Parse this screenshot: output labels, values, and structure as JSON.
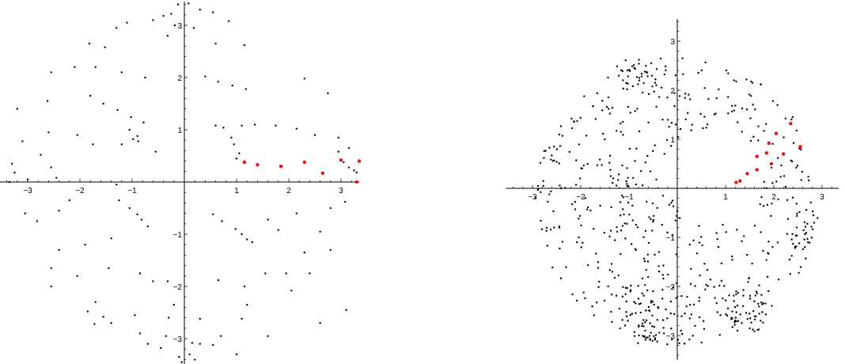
{
  "chart_data": [
    {
      "type": "scatter",
      "title": "",
      "xlabel": "",
      "ylabel": "",
      "xlim": [
        -3.55,
        3.35
      ],
      "ylim": [
        -3.5,
        3.45
      ],
      "grid": false,
      "x_ticks": [
        "-3",
        "-2",
        "-1",
        "1",
        "2",
        "3"
      ],
      "y_ticks": [
        "-3",
        "-2",
        "-1",
        "1",
        "2",
        "3"
      ],
      "series": [
        {
          "color": "#000000",
          "radius": 1.2,
          "points": [
            [
              0.08,
              3.42
            ],
            [
              0.3,
              3.3
            ],
            [
              0.55,
              3.25
            ],
            [
              0.85,
              3.08
            ],
            [
              -0.12,
              3.4
            ],
            [
              -0.25,
              3.22
            ],
            [
              -0.4,
              3.18
            ],
            [
              -0.6,
              3.1
            ],
            [
              -1.1,
              3.05
            ],
            [
              -1.3,
              2.95
            ],
            [
              -0.18,
              3.0
            ],
            [
              0.18,
              2.95
            ],
            [
              0.6,
              2.65
            ],
            [
              1.15,
              2.62
            ],
            [
              -0.32,
              2.8
            ],
            [
              -1.82,
              2.65
            ],
            [
              -1.52,
              2.58
            ],
            [
              -2.1,
              2.2
            ],
            [
              -2.55,
              2.1
            ],
            [
              -1.7,
              2.2
            ],
            [
              -1.2,
              2.1
            ],
            [
              -0.75,
              2.0
            ],
            [
              0.4,
              2.02
            ],
            [
              0.65,
              1.92
            ],
            [
              0.92,
              1.85
            ],
            [
              1.18,
              1.78
            ],
            [
              2.3,
              1.98
            ],
            [
              2.75,
              1.7
            ],
            [
              -2.62,
              1.55
            ],
            [
              -3.2,
              1.4
            ],
            [
              -1.8,
              1.65
            ],
            [
              -1.55,
              1.5
            ],
            [
              -1.28,
              1.38
            ],
            [
              -1.02,
              1.24
            ],
            [
              -0.78,
              1.14
            ],
            [
              0.75,
              1.04
            ],
            [
              0.6,
              1.08
            ],
            [
              1.1,
              1.08
            ],
            [
              1.35,
              1.1
            ],
            [
              1.75,
              1.08
            ],
            [
              2.15,
              1.02
            ],
            [
              2.5,
              0.9
            ],
            [
              2.95,
              0.85
            ],
            [
              3.15,
              0.65
            ],
            [
              -3.1,
              0.78
            ],
            [
              -2.6,
              0.95
            ],
            [
              -2.05,
              0.9
            ],
            [
              -1.75,
              0.72
            ],
            [
              -1.05,
              1.0
            ],
            [
              -0.9,
              0.88
            ],
            [
              -0.98,
              0.82
            ],
            [
              -0.88,
              0.78
            ],
            [
              -1.2,
              0.72
            ],
            [
              -2.75,
              0.52
            ],
            [
              -0.55,
              0.58
            ],
            [
              0.9,
              0.85
            ],
            [
              0.95,
              0.72
            ],
            [
              1.05,
              0.55
            ],
            [
              1.0,
              0.45
            ],
            [
              2.95,
              0.58
            ],
            [
              3.05,
              0.38
            ],
            [
              3.15,
              0.28
            ],
            [
              3.25,
              0.22
            ],
            [
              3.3,
              0.18
            ],
            [
              -3.3,
              0.35
            ],
            [
              -3.25,
              0.18
            ],
            [
              -2.55,
              0.28
            ],
            [
              -3.0,
              0.05
            ],
            [
              -3.35,
              0.0
            ],
            [
              -2.45,
              0.08
            ],
            [
              -1.3,
              -0.05
            ],
            [
              -1.25,
              -0.35
            ],
            [
              -1.05,
              -0.5
            ],
            [
              -0.9,
              -0.62
            ],
            [
              -0.82,
              -0.72
            ],
            [
              -0.7,
              -0.85
            ],
            [
              -2.2,
              -0.35
            ],
            [
              -2.4,
              -0.55
            ],
            [
              -2.82,
              -0.75
            ],
            [
              -3.05,
              -0.6
            ],
            [
              0.55,
              -0.62
            ],
            [
              0.72,
              -0.75
            ],
            [
              0.98,
              -0.9
            ],
            [
              1.1,
              -1.0
            ],
            [
              1.2,
              -1.1
            ],
            [
              1.3,
              -1.15
            ],
            [
              1.6,
              -0.72
            ],
            [
              1.8,
              -0.92
            ],
            [
              2.15,
              -0.6
            ],
            [
              2.8,
              -0.5
            ],
            [
              3.08,
              -0.38
            ],
            [
              2.6,
              -0.95
            ],
            [
              2.3,
              -1.35
            ],
            [
              2.8,
              -1.3
            ],
            [
              -1.4,
              -1.08
            ],
            [
              -1.9,
              -1.2
            ],
            [
              -2.4,
              -1.3
            ],
            [
              -1.45,
              -1.65
            ],
            [
              -2.05,
              -1.8
            ],
            [
              -2.55,
              -1.65
            ],
            [
              -2.55,
              -2.0
            ],
            [
              -0.85,
              -1.75
            ],
            [
              -0.6,
              -1.9
            ],
            [
              -0.32,
              -1.9
            ],
            [
              0.65,
              -1.88
            ],
            [
              1.15,
              -2.0
            ],
            [
              1.55,
              -1.75
            ],
            [
              1.95,
              -1.75
            ],
            [
              2.4,
              -1.75
            ],
            [
              2.05,
              -2.08
            ],
            [
              1.2,
              -2.35
            ],
            [
              1.1,
              -2.62
            ],
            [
              -1.7,
              -2.3
            ],
            [
              -1.85,
              -2.48
            ],
            [
              -1.55,
              -2.58
            ],
            [
              -1.72,
              -2.72
            ],
            [
              -1.4,
              -2.7
            ],
            [
              -0.95,
              -2.55
            ],
            [
              -0.85,
              -2.9
            ],
            [
              -0.2,
              -2.35
            ],
            [
              -0.3,
              -2.6
            ],
            [
              -0.35,
              -2.95
            ],
            [
              0.3,
              -2.62
            ],
            [
              0.7,
              -2.95
            ],
            [
              0.55,
              -3.12
            ],
            [
              0.3,
              -3.1
            ],
            [
              0.15,
              -3.08
            ],
            [
              -0.45,
              -3.18
            ],
            [
              -0.7,
              -3.1
            ],
            [
              -0.1,
              -3.35
            ],
            [
              0.1,
              -3.3
            ],
            [
              0.2,
              -3.4
            ],
            [
              -0.05,
              -3.45
            ],
            [
              1.0,
              -3.3
            ],
            [
              1.6,
              -2.95
            ],
            [
              2.6,
              -2.7
            ],
            [
              3.1,
              -2.45
            ]
          ]
        },
        {
          "color": "#e8110f",
          "radius": 2.2,
          "points": [
            [
              1.15,
              0.38
            ],
            [
              1.4,
              0.33
            ],
            [
              1.85,
              0.3
            ],
            [
              2.3,
              0.38
            ],
            [
              2.65,
              0.17
            ],
            [
              3.0,
              0.42
            ],
            [
              3.3,
              0.0
            ],
            [
              3.35,
              0.4
            ]
          ]
        }
      ]
    },
    {
      "type": "scatter",
      "title": "",
      "xlabel": "",
      "ylabel": "",
      "xlim": [
        -3.55,
        3.35
      ],
      "ylim": [
        -3.5,
        3.45
      ],
      "grid": false,
      "x_ticks": [
        "-3",
        "-2",
        "-1",
        "1",
        "2",
        "3"
      ],
      "y_ticks": [
        "-3",
        "-2",
        "-1",
        "1",
        "2",
        "3"
      ],
      "series": [
        {
          "color": "#000000",
          "radius": 1.2,
          "fill": [
            {
              "cx": 0.0,
              "cy": -0.25,
              "r": 2.95,
              "n": 520
            },
            {
              "cx": -0.95,
              "cy": 2.35,
              "r": 0.35,
              "n": 30
            },
            {
              "cx": 1.45,
              "cy": -2.5,
              "r": 0.45,
              "n": 50
            },
            {
              "cx": -0.65,
              "cy": -2.75,
              "r": 0.45,
              "n": 45
            },
            {
              "cx": 2.6,
              "cy": -0.95,
              "r": 0.3,
              "n": 20
            }
          ],
          "hole": {
            "cx": 0.8,
            "cy": 0.25,
            "r": 1.0
          }
        },
        {
          "color": "#e8110f",
          "radius": 2.2,
          "points": [
            [
              1.22,
              0.12
            ],
            [
              1.3,
              0.15
            ],
            [
              1.45,
              0.3
            ],
            [
              1.65,
              0.38
            ],
            [
              1.65,
              0.65
            ],
            [
              1.85,
              0.72
            ],
            [
              1.9,
              0.92
            ],
            [
              2.05,
              1.12
            ],
            [
              2.2,
              0.7
            ],
            [
              2.35,
              1.32
            ],
            [
              2.55,
              0.85
            ],
            [
              1.95,
              0.5
            ]
          ]
        }
      ]
    }
  ]
}
